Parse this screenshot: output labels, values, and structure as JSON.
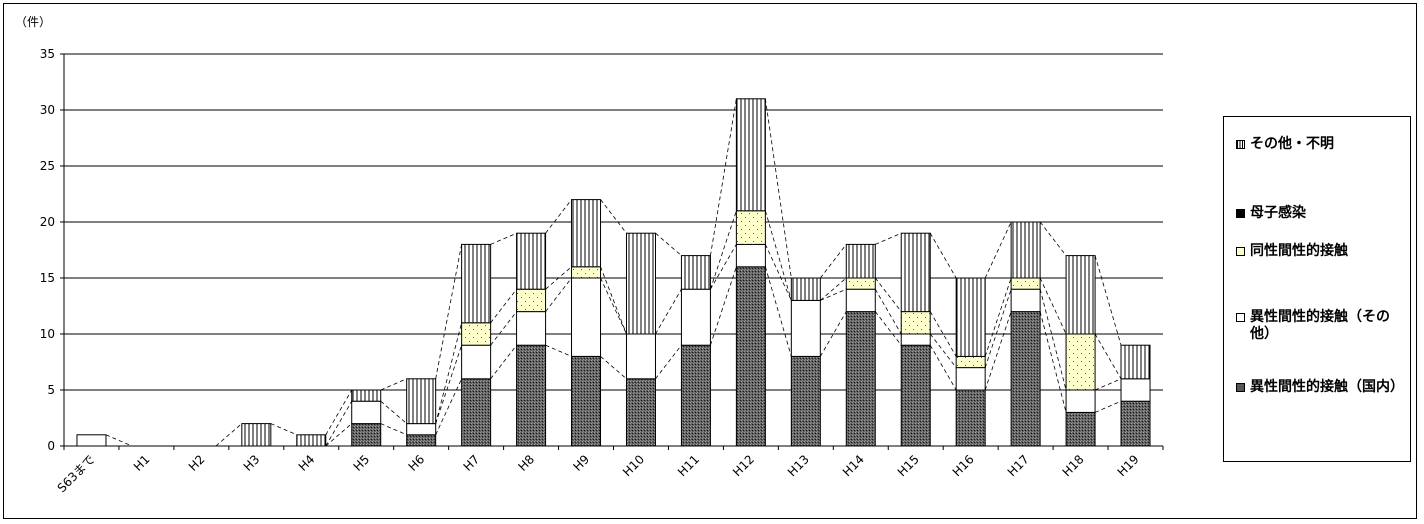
{
  "chart_data": {
    "type": "bar",
    "stacked": true,
    "unit_label": "（件）",
    "ylim": [
      0,
      35
    ],
    "yticks": [
      0,
      5,
      10,
      15,
      20,
      25,
      30,
      35
    ],
    "grid": true,
    "legend_position": "right",
    "categories": [
      "S63まで",
      "H1",
      "H2",
      "H3",
      "H4",
      "H5",
      "H6",
      "H7",
      "H8",
      "H9",
      "H10",
      "H11",
      "H12",
      "H13",
      "H14",
      "H15",
      "H16",
      "H17",
      "H18",
      "H19"
    ],
    "series": [
      {
        "name": "異性間性的接触（国内）",
        "pattern": "dark",
        "values": [
          0,
          0,
          0,
          0,
          0,
          2,
          1,
          6,
          9,
          8,
          6,
          9,
          16,
          8,
          12,
          9,
          5,
          12,
          3,
          4
        ]
      },
      {
        "name": "異性間性的接触（その他）",
        "pattern": "white",
        "values": [
          1,
          0,
          0,
          0,
          0,
          2,
          1,
          3,
          3,
          7,
          4,
          5,
          2,
          5,
          2,
          1,
          2,
          2,
          2,
          2
        ]
      },
      {
        "name": "同性間性的接触",
        "pattern": "dots",
        "values": [
          0,
          0,
          0,
          0,
          0,
          0,
          0,
          2,
          2,
          1,
          0,
          0,
          3,
          0,
          1,
          2,
          1,
          1,
          5,
          0
        ]
      },
      {
        "name": "母子感染",
        "pattern": "black",
        "values": [
          0,
          0,
          0,
          0,
          0,
          0,
          0,
          0,
          0,
          0,
          0,
          0,
          0,
          0,
          0,
          0,
          0,
          0,
          0,
          0
        ]
      },
      {
        "name": "その他・不明",
        "pattern": "vstripes",
        "values": [
          0,
          0,
          0,
          2,
          1,
          1,
          4,
          7,
          5,
          6,
          9,
          3,
          10,
          2,
          3,
          7,
          7,
          5,
          7,
          3
        ]
      }
    ],
    "legend": [
      {
        "label": "その他・不明",
        "pattern": "vstripes"
      },
      {
        "label": "母子感染",
        "pattern": "black"
      },
      {
        "label": "同性間性的接触",
        "pattern": "dots"
      },
      {
        "label": "異性間性的接触（その他）",
        "pattern": "white"
      },
      {
        "label": "異性間性的接触（国内）",
        "pattern": "dark"
      }
    ],
    "colors": {
      "dots_fill": "#ffffcc",
      "dark_fill": "#555555",
      "axis": "#000000"
    }
  }
}
